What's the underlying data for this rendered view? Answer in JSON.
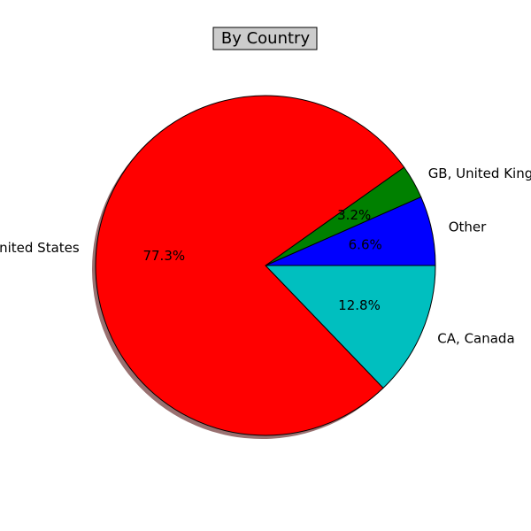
{
  "chart_data": {
    "type": "pie",
    "title": "By Country",
    "series": [
      {
        "label": "Other",
        "value": 6.6,
        "pct_label": "6.6%",
        "color": "#0000ff"
      },
      {
        "label": "GB, United Kingdom",
        "value": 3.2,
        "pct_label": "3.2%",
        "color": "#008000"
      },
      {
        "label": "US, United States",
        "value": 77.3,
        "pct_label": "77.3%",
        "color": "#ff0000"
      },
      {
        "label": "CA, Canada",
        "value": 12.8,
        "pct_label": "12.8%",
        "color": "#00bfbf"
      }
    ],
    "shadow": true,
    "shadow_color": "#997070",
    "title_box_color": "#cccccc",
    "legend": "none"
  }
}
